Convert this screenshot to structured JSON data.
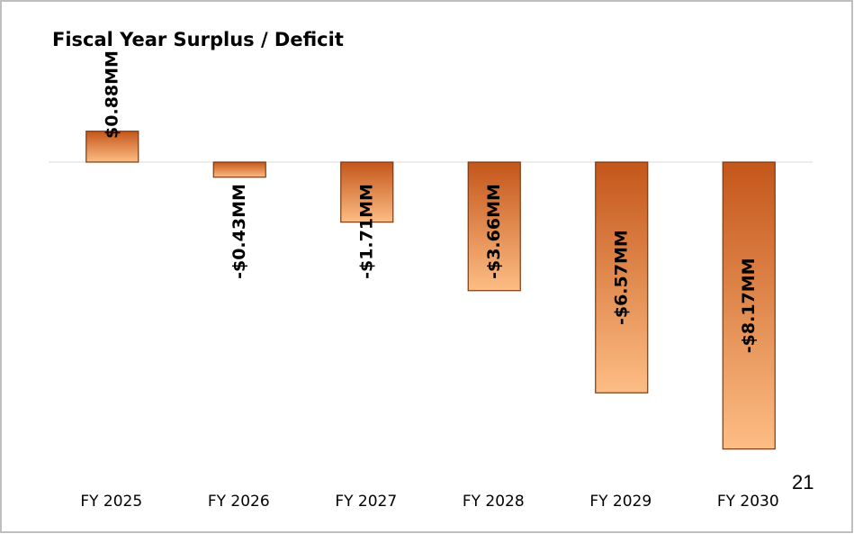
{
  "chart_data": {
    "type": "bar",
    "title": "Fiscal Year Surplus / Deficit",
    "categories": [
      "FY 2025",
      "FY 2026",
      "FY 2027",
      "FY 2028",
      "FY 2029",
      "FY 2030"
    ],
    "values": [
      0.88,
      -0.43,
      -1.71,
      -3.66,
      -6.57,
      -8.17
    ],
    "value_labels": [
      "$0.88MM",
      "-$0.43MM",
      "-$1.71MM",
      "-$3.66MM",
      "-$6.57MM",
      "-$8.17MM"
    ],
    "color": "#e8782e",
    "ylim": [
      -9,
      2
    ]
  },
  "page_number": "21"
}
